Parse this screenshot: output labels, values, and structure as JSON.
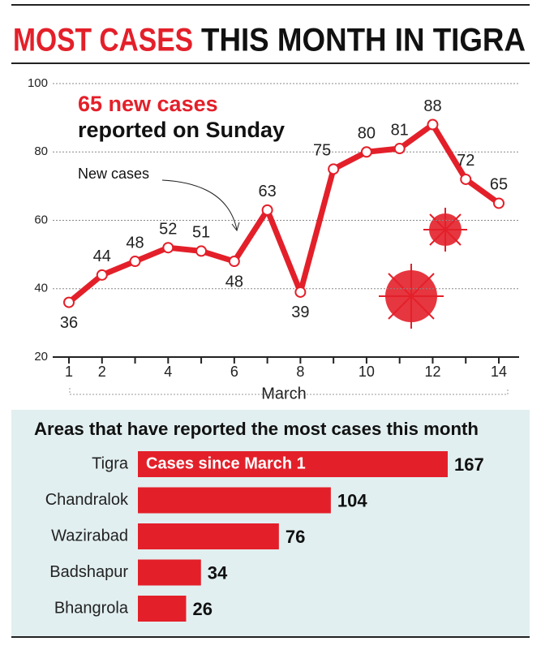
{
  "title": [
    "MOST CASES",
    "THIS MONTH IN TIGRA"
  ],
  "chart_data": [
    {
      "type": "line",
      "annotations": [
        "65 new cases",
        "reported on Sunday",
        "New cases"
      ],
      "x": [
        1,
        2,
        3,
        4,
        5,
        6,
        7,
        8,
        9,
        10,
        11,
        12,
        13,
        14
      ],
      "values": [
        36,
        44,
        48,
        52,
        51,
        48,
        63,
        39,
        75,
        80,
        81,
        88,
        72,
        65
      ],
      "color": "#e3202a",
      "xlabel": "March",
      "xlim": [
        1,
        14
      ],
      "xticks": [
        1,
        2,
        4,
        6,
        8,
        10,
        12,
        14
      ],
      "ylim": [
        20,
        100
      ],
      "yticks": [
        20,
        40,
        60,
        80,
        100
      ],
      "grid": true
    },
    {
      "type": "hbar",
      "title": "Areas that have reported the most cases this month",
      "annotation": "Cases since March 1",
      "categories": [
        "Tigra",
        "Chandralok",
        "Wazirabad",
        "Badshapur",
        "Bhangrola"
      ],
      "values": [
        167,
        104,
        76,
        34,
        26
      ],
      "color": "#e3202a"
    }
  ]
}
